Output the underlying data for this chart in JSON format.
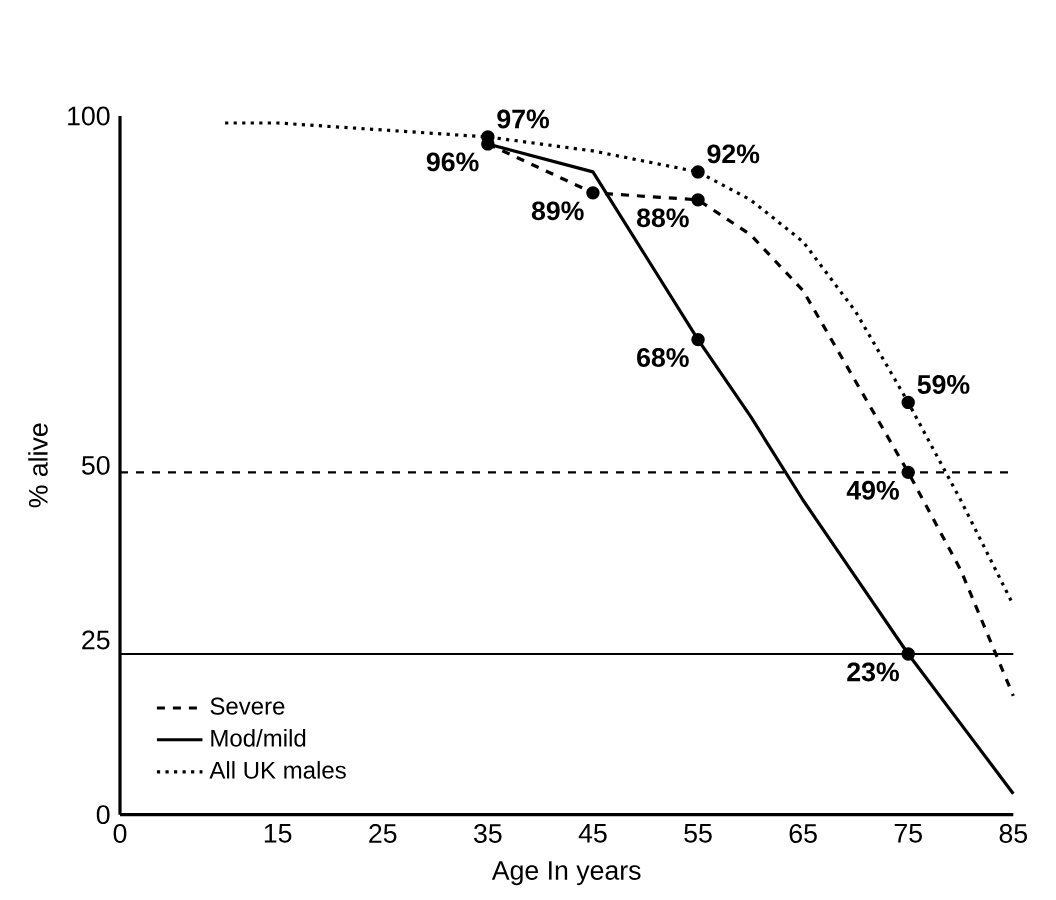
{
  "chart_data": {
    "type": "line",
    "xlabel": "Age In years",
    "ylabel": "% alive",
    "xlim": [
      0,
      85
    ],
    "xticks": [
      0,
      15,
      25,
      35,
      45,
      55,
      65,
      75,
      85
    ],
    "ylim": [
      0,
      100
    ],
    "yticks": [
      0,
      25,
      50,
      100
    ],
    "legend": "bottom left",
    "ref_lines": [
      {
        "axis": "y",
        "value": 49,
        "line_style": "dashed"
      },
      {
        "axis": "y",
        "value": 23,
        "line_style": "solid"
      }
    ],
    "series": [
      {
        "name": "Severe",
        "color": "#000000",
        "line_style": "dashed",
        "x": [
          35,
          45,
          55,
          60,
          65,
          70,
          75,
          80,
          85
        ],
        "values": [
          96,
          89,
          88,
          83,
          75,
          62,
          49,
          35,
          17
        ],
        "value_labels": [
          "96%",
          "89%",
          "88%",
          null,
          null,
          null,
          "49%",
          null,
          null
        ]
      },
      {
        "name": "Mod/mild",
        "color": "#000000",
        "line_style": "solid",
        "x": [
          35,
          45,
          50,
          55,
          60,
          65,
          70,
          75,
          80,
          85
        ],
        "values": [
          96,
          92,
          80,
          68,
          57,
          45,
          34,
          23,
          13,
          3
        ],
        "value_labels": [
          null,
          null,
          null,
          "68%",
          null,
          null,
          null,
          "23%",
          null,
          null
        ]
      },
      {
        "name": "All UK males",
        "color": "#000000",
        "line_style": "dotted",
        "x": [
          10,
          15,
          25,
          35,
          45,
          55,
          60,
          65,
          70,
          75,
          80,
          85
        ],
        "values": [
          99,
          99,
          98,
          97,
          95,
          92,
          88,
          82,
          72,
          59,
          45,
          30
        ],
        "value_labels": [
          null,
          null,
          null,
          "97%",
          null,
          "92%",
          null,
          null,
          null,
          "59%",
          null,
          null
        ]
      }
    ]
  }
}
